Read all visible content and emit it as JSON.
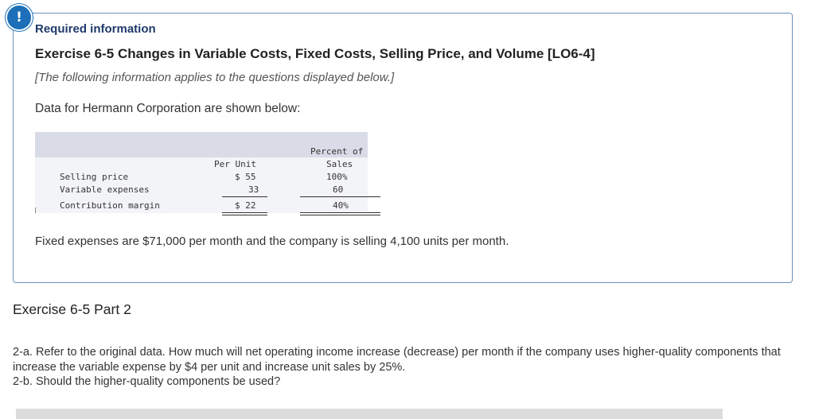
{
  "alert_icon": "!",
  "info": {
    "required_label": "Required information",
    "exercise_title": "Exercise 6-5 Changes in Variable Costs, Fixed Costs, Selling Price, and Volume [LO6-4]",
    "applies_note": "[The following information applies to the questions displayed below.]",
    "intro": "Data for Hermann Corporation are shown below:",
    "table": {
      "col_per_unit": "Per Unit",
      "col_percent_line1": "Percent of",
      "col_percent_line2": "Sales",
      "rows": [
        {
          "label": "Selling price",
          "per_unit": "$ 55",
          "percent": "100%"
        },
        {
          "label": "Variable expenses",
          "per_unit": "33",
          "percent": "60"
        },
        {
          "label": "Contribution margin",
          "per_unit": "$ 22",
          "percent": "40%"
        }
      ]
    },
    "fixed_note": "Fixed expenses are $71,000 per month and the company is selling 4,100 units per month."
  },
  "part": {
    "title": "Exercise 6-5 Part 2",
    "question_2a": "2-a. Refer to the original data. How much will net operating income increase (decrease) per month if the company uses higher-quality components that increase the variable expense by $4 per unit and increase unit sales by 25%.",
    "question_2b": "2-b. Should the higher-quality components be used?"
  }
}
